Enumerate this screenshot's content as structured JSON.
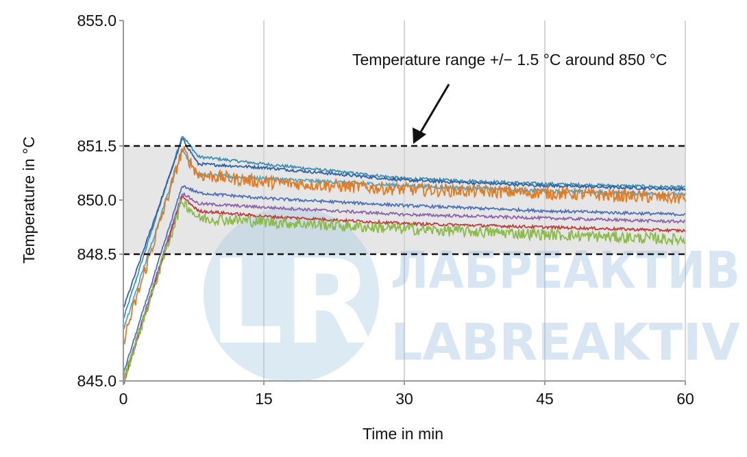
{
  "chart_data": {
    "type": "line",
    "title": "",
    "xlabel": "Time in min",
    "ylabel": "Temperature in °C",
    "xlim": [
      0,
      60
    ],
    "ylim": [
      845.0,
      855.0
    ],
    "x_ticks": [
      "0",
      "15",
      "30",
      "45",
      "60"
    ],
    "y_ticks": [
      "855.0",
      "851.5",
      "850.0",
      "848.5",
      "845.0"
    ],
    "y_tick_values": [
      855.0,
      851.5,
      850.0,
      848.5,
      845.0
    ],
    "x_tick_values": [
      0,
      15,
      30,
      45,
      60
    ],
    "grid": "vertical",
    "band": {
      "low": 848.5,
      "high": 851.5,
      "color": "#e6e6e6"
    },
    "limit_lines": [
      851.5,
      848.5
    ],
    "annotation": {
      "text": "Temperature range +/− 1.5 °C around 850 °C",
      "points_to": [
        30,
        851.5
      ]
    },
    "series": [
      {
        "color": "#3d8fb0",
        "x": [
          0,
          6.3,
          8,
          15,
          30,
          45,
          60
        ],
        "values": [
          846.7,
          851.8,
          851.2,
          851.0,
          850.6,
          850.45,
          850.35
        ],
        "noise": 0.04
      },
      {
        "color": "#2f5fa8",
        "x": [
          0,
          6.3,
          8,
          15,
          30,
          45,
          60
        ],
        "values": [
          847.0,
          851.7,
          851.0,
          850.9,
          850.55,
          850.4,
          850.3
        ],
        "noise": 0.04
      },
      {
        "color": "#4aa7c9",
        "x": [
          0,
          6.3,
          8,
          15,
          30,
          45,
          60
        ],
        "values": [
          846.4,
          851.4,
          850.7,
          850.6,
          850.4,
          850.25,
          850.15
        ],
        "noise": 0.05
      },
      {
        "color": "#e07b25",
        "x": [
          0,
          6.3,
          8,
          15,
          30,
          45,
          60
        ],
        "values": [
          846.1,
          851.4,
          850.7,
          850.5,
          850.3,
          850.2,
          850.05
        ],
        "noise": 0.18
      },
      {
        "color": "#4b70b8",
        "x": [
          0,
          6.3,
          8,
          15,
          30,
          45,
          60
        ],
        "values": [
          845.2,
          850.4,
          850.2,
          850.05,
          849.85,
          849.7,
          849.6
        ],
        "noise": 0.04
      },
      {
        "color": "#8b62a8",
        "x": [
          0,
          6.3,
          8,
          15,
          30,
          45,
          60
        ],
        "values": [
          845.0,
          850.2,
          849.9,
          849.8,
          849.6,
          849.5,
          849.4
        ],
        "noise": 0.04
      },
      {
        "color": "#c23b3b",
        "x": [
          0,
          6.3,
          8,
          15,
          30,
          45,
          60
        ],
        "values": [
          844.9,
          850.1,
          849.7,
          849.55,
          849.35,
          849.25,
          849.15
        ],
        "noise": 0.04
      },
      {
        "color": "#8ab94a",
        "x": [
          0,
          6.3,
          8,
          15,
          30,
          45,
          60
        ],
        "values": [
          845.0,
          850.0,
          849.5,
          849.4,
          849.2,
          849.05,
          848.9
        ],
        "noise": 0.16
      }
    ]
  },
  "watermark": {
    "logo_text": "LR",
    "line1": "ЛАБРЕАКТИВ",
    "line2": "LABREAKTIV",
    "color": "#8fb9db"
  }
}
